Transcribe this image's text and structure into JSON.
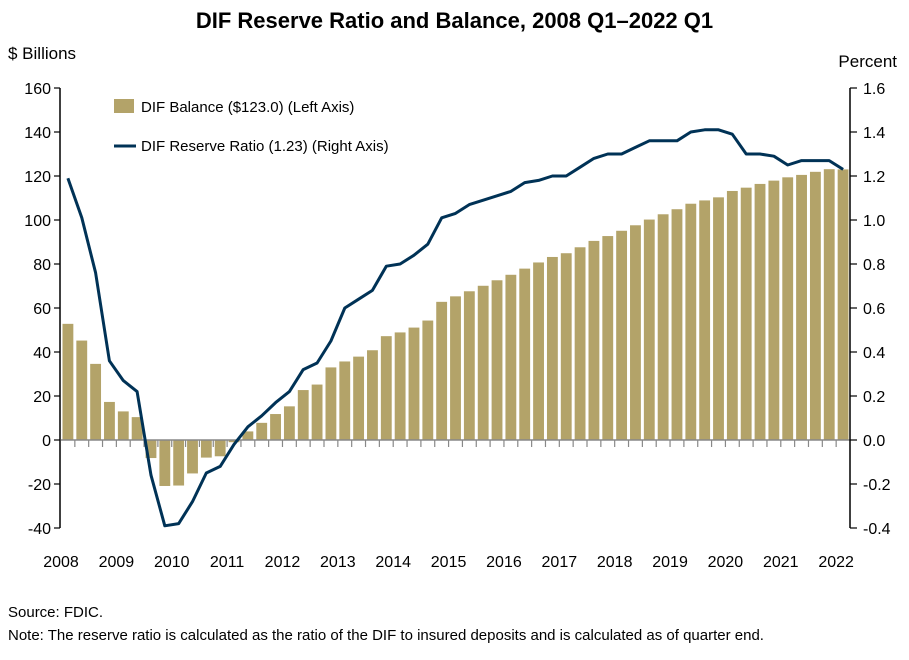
{
  "chart_data": {
    "type": "bar+line",
    "title": "DIF Reserve Ratio and Balance, 2008 Q1–2022 Q1",
    "ylabel_left": "$ Billions",
    "ylabel_right": "Percent",
    "ylim_left": [
      -40,
      160
    ],
    "ylim_right": [
      -0.4,
      1.6
    ],
    "yticks_left": [
      "160",
      "140",
      "120",
      "100",
      "80",
      "60",
      "40",
      "20",
      "0",
      "-20",
      "-40"
    ],
    "yticks_right": [
      "1.6",
      "1.4",
      "1.2",
      "1.0",
      "0.8",
      "0.6",
      "0.4",
      "0.2",
      "0.0",
      "-0.2",
      "-0.4"
    ],
    "xticks": [
      "2008",
      "2009",
      "2010",
      "2011",
      "2012",
      "2013",
      "2014",
      "2015",
      "2016",
      "2017",
      "2018",
      "2019",
      "2020",
      "2021",
      "2022"
    ],
    "grid": false,
    "legend_placement": "top-left",
    "colors": {
      "bar": "#b3a369",
      "line": "#003256"
    },
    "series": [
      {
        "name": "DIF Balance ($123.0) (Left Axis)",
        "type": "bar",
        "axis": "left",
        "values": [
          52.8,
          45.2,
          34.6,
          17.3,
          13.0,
          10.4,
          -8.2,
          -20.9,
          -20.7,
          -15.2,
          -8.0,
          -7.4,
          -1.0,
          3.9,
          7.8,
          11.8,
          15.3,
          22.7,
          25.2,
          33.0,
          35.7,
          37.9,
          40.8,
          47.2,
          48.9,
          51.1,
          54.3,
          62.8,
          65.3,
          67.6,
          70.1,
          72.6,
          75.1,
          77.9,
          80.7,
          83.2,
          84.9,
          87.6,
          90.5,
          92.7,
          95.1,
          97.6,
          100.2,
          102.6,
          104.9,
          107.4,
          108.9,
          110.3,
          113.2,
          114.7,
          116.4,
          117.9,
          119.4,
          120.5,
          121.9,
          123.1,
          123.0
        ]
      },
      {
        "name": "DIF Reserve Ratio (1.23) (Right Axis)",
        "type": "line",
        "axis": "right",
        "values": [
          1.19,
          1.01,
          0.76,
          0.36,
          0.27,
          0.22,
          -0.16,
          -0.39,
          -0.38,
          -0.28,
          -0.15,
          -0.12,
          -0.02,
          0.06,
          0.11,
          0.17,
          0.22,
          0.32,
          0.35,
          0.45,
          0.6,
          0.64,
          0.68,
          0.79,
          0.8,
          0.84,
          0.89,
          1.01,
          1.03,
          1.07,
          1.09,
          1.11,
          1.13,
          1.17,
          1.18,
          1.2,
          1.2,
          1.24,
          1.28,
          1.3,
          1.3,
          1.33,
          1.36,
          1.36,
          1.36,
          1.4,
          1.41,
          1.41,
          1.39,
          1.3,
          1.3,
          1.29,
          1.25,
          1.27,
          1.27,
          1.27,
          1.23
        ]
      }
    ]
  },
  "source": "Source: FDIC.",
  "note": "Note: The reserve ratio is calculated as the ratio of the DIF to insured deposits and is calculated as of quarter end."
}
